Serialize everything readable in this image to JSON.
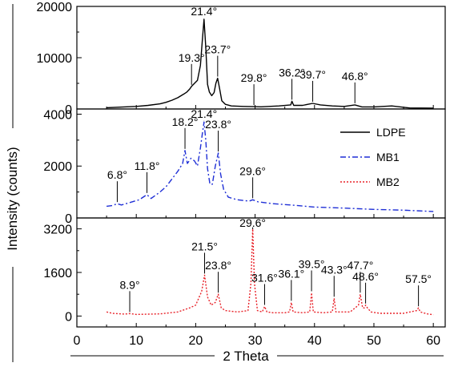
{
  "chart_data": {
    "type": "line",
    "title": "",
    "xlabel": "2 Theta",
    "ylabel": "Intensity (counts)",
    "xlim": [
      0,
      62
    ],
    "xticks": [
      0,
      10,
      20,
      30,
      40,
      50,
      60
    ],
    "x_tick_labels": [
      "0",
      "10",
      "20",
      "30",
      "40",
      "50",
      "60"
    ],
    "legend": {
      "placement": "right, middle panel",
      "entries": [
        {
          "name": "LDPE",
          "color": "#000000",
          "style": "solid"
        },
        {
          "name": "MB1",
          "color": "#1f2fd6",
          "style": "dash-dot"
        },
        {
          "name": "MB2",
          "color": "#e8232a",
          "style": "dotted"
        }
      ]
    },
    "panels": [
      {
        "series": "LDPE",
        "color": "#000000",
        "dash": "",
        "ylim": [
          0,
          20000
        ],
        "yticks": [
          0,
          10000,
          20000
        ],
        "y_tick_labels": [
          "0",
          "10000",
          "20000"
        ],
        "x": [
          5,
          8,
          10,
          12,
          14,
          15,
          16,
          17,
          18,
          18.5,
          19,
          19.3,
          19.8,
          20.3,
          20.8,
          21.1,
          21.4,
          21.7,
          22.0,
          22.3,
          22.7,
          23.1,
          23.4,
          23.7,
          24.0,
          24.4,
          25,
          26,
          28,
          29.8,
          31,
          34,
          36,
          36.2,
          36.5,
          38,
          39.7,
          41,
          43,
          45,
          46.8,
          48,
          50,
          53,
          56,
          60
        ],
        "y": [
          250,
          400,
          500,
          700,
          1000,
          1300,
          1700,
          2200,
          2900,
          3300,
          3900,
          4400,
          5000,
          5600,
          8500,
          13000,
          17500,
          12000,
          4800,
          3300,
          2600,
          3200,
          5000,
          6000,
          4100,
          1600,
          900,
          600,
          500,
          450,
          420,
          600,
          800,
          1500,
          700,
          700,
          1100,
          800,
          600,
          500,
          800,
          400,
          400,
          600,
          200,
          150
        ],
        "peaks": [
          {
            "label": "19.3°",
            "x": 19.3,
            "y": 4400
          },
          {
            "label": "21.4°",
            "x": 21.4,
            "y": 17500
          },
          {
            "label": "23.7°",
            "x": 23.7,
            "y": 6000
          },
          {
            "label": "29.8°",
            "x": 29.8,
            "y": 450
          },
          {
            "label": "36.2°",
            "x": 36.2,
            "y": 1500
          },
          {
            "label": "39.7°",
            "x": 39.7,
            "y": 1100
          },
          {
            "label": "46.8°",
            "x": 46.8,
            "y": 800
          }
        ]
      },
      {
        "series": "MB1",
        "color": "#1f2fd6",
        "dash": "7,3,2,3",
        "ylim": [
          0,
          4200
        ],
        "yticks": [
          0,
          2000,
          4000
        ],
        "y_tick_labels": [
          "0",
          "2000",
          "4000"
        ],
        "x": [
          5,
          6,
          6.8,
          7.5,
          9,
          10.5,
          11.8,
          12.5,
          14,
          15,
          16,
          17,
          17.8,
          18.2,
          18.6,
          19.2,
          19.8,
          20.3,
          20.8,
          21.1,
          21.4,
          21.7,
          22.0,
          22.4,
          22.8,
          23.3,
          23.8,
          24.2,
          24.7,
          25.5,
          27,
          29,
          29.6,
          30.5,
          33,
          36,
          40,
          45,
          50,
          55,
          60
        ],
        "y": [
          450,
          480,
          550,
          500,
          600,
          700,
          900,
          750,
          1000,
          1200,
          1500,
          1800,
          2100,
          2600,
          2100,
          2300,
          2200,
          2000,
          2700,
          3200,
          3700,
          3000,
          1900,
          1300,
          1300,
          2000,
          2500,
          1700,
          1100,
          800,
          700,
          650,
          700,
          620,
          550,
          500,
          420,
          380,
          330,
          300,
          250
        ],
        "peaks": [
          {
            "label": "6.8°",
            "x": 6.8,
            "y": 550
          },
          {
            "label": "11.8°",
            "x": 11.8,
            "y": 900
          },
          {
            "label": "18.2°",
            "x": 18.2,
            "y": 2600
          },
          {
            "label": "21.4°",
            "x": 21.4,
            "y": 3700
          },
          {
            "label": "23.8°",
            "x": 23.8,
            "y": 2500
          },
          {
            "label": "29.6°",
            "x": 29.6,
            "y": 700
          }
        ]
      },
      {
        "series": "MB2",
        "color": "#e8232a",
        "dash": "2,2",
        "ylim": [
          -400,
          3600
        ],
        "yticks": [
          0,
          1600,
          3200
        ],
        "y_tick_labels": [
          "0",
          "1600",
          "3200"
        ],
        "x": [
          5,
          6,
          8,
          8.9,
          10,
          14,
          17,
          19,
          20,
          21,
          21.5,
          22.0,
          22.6,
          23.3,
          23.8,
          24.3,
          25,
          27,
          28.8,
          29.3,
          29.6,
          29.9,
          30.4,
          31.2,
          31.6,
          32.0,
          33,
          35,
          35.8,
          36.1,
          36.4,
          38,
          39.2,
          39.5,
          39.8,
          41.5,
          43.0,
          43.3,
          43.6,
          46,
          47.4,
          47.7,
          48.1,
          48.4,
          48.6,
          48.9,
          49.5,
          51,
          55,
          57.2,
          57.5,
          57.8,
          59,
          60
        ],
        "y": [
          150,
          100,
          70,
          90,
          60,
          80,
          150,
          300,
          400,
          900,
          1500,
          700,
          400,
          500,
          800,
          300,
          200,
          150,
          200,
          1200,
          3200,
          1200,
          200,
          150,
          350,
          150,
          120,
          120,
          150,
          500,
          150,
          120,
          150,
          850,
          150,
          120,
          150,
          650,
          150,
          150,
          400,
          800,
          300,
          300,
          400,
          300,
          150,
          100,
          100,
          200,
          300,
          150,
          80,
          50
        ],
        "peaks": [
          {
            "label": "8.9°",
            "x": 8.9,
            "y": 90
          },
          {
            "label": "21.5°",
            "x": 21.5,
            "y": 1500
          },
          {
            "label": "23.8°",
            "x": 23.8,
            "y": 800
          },
          {
            "label": "29.6°",
            "x": 29.6,
            "y": 3200
          },
          {
            "label": "31.6°",
            "x": 31.6,
            "y": 350
          },
          {
            "label": "36.1°",
            "x": 36.1,
            "y": 500
          },
          {
            "label": "39.5°",
            "x": 39.5,
            "y": 850
          },
          {
            "label": "43.3°",
            "x": 43.3,
            "y": 650
          },
          {
            "label": "47.7°",
            "x": 47.7,
            "y": 800
          },
          {
            "label": "48.6°",
            "x": 48.6,
            "y": 400
          },
          {
            "label": "57.5°",
            "x": 57.5,
            "y": 300
          }
        ]
      }
    ]
  }
}
